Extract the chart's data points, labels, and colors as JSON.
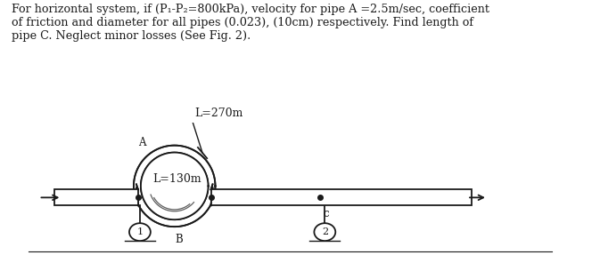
{
  "title_text": "For horizontal system, if (P₁-P₂=800kPa), velocity for pipe A =2.5m/sec, coefficient\nof friction and diameter for all pipes (0.023), (10cm) respectively. Find length of\npipe C. Neglect minor losses (See Fig. 2).",
  "label_A": "L=270m",
  "label_B": "L=130m",
  "label_node_A": "A",
  "label_node_B": "B",
  "label_node_C": "c",
  "label_node_1": "1",
  "label_node_2": "2",
  "bg_color": "#ffffff",
  "line_color": "#1a1a1a",
  "text_color": "#1a1a1a",
  "fig_width": 6.73,
  "fig_height": 2.87,
  "dpi": 100
}
